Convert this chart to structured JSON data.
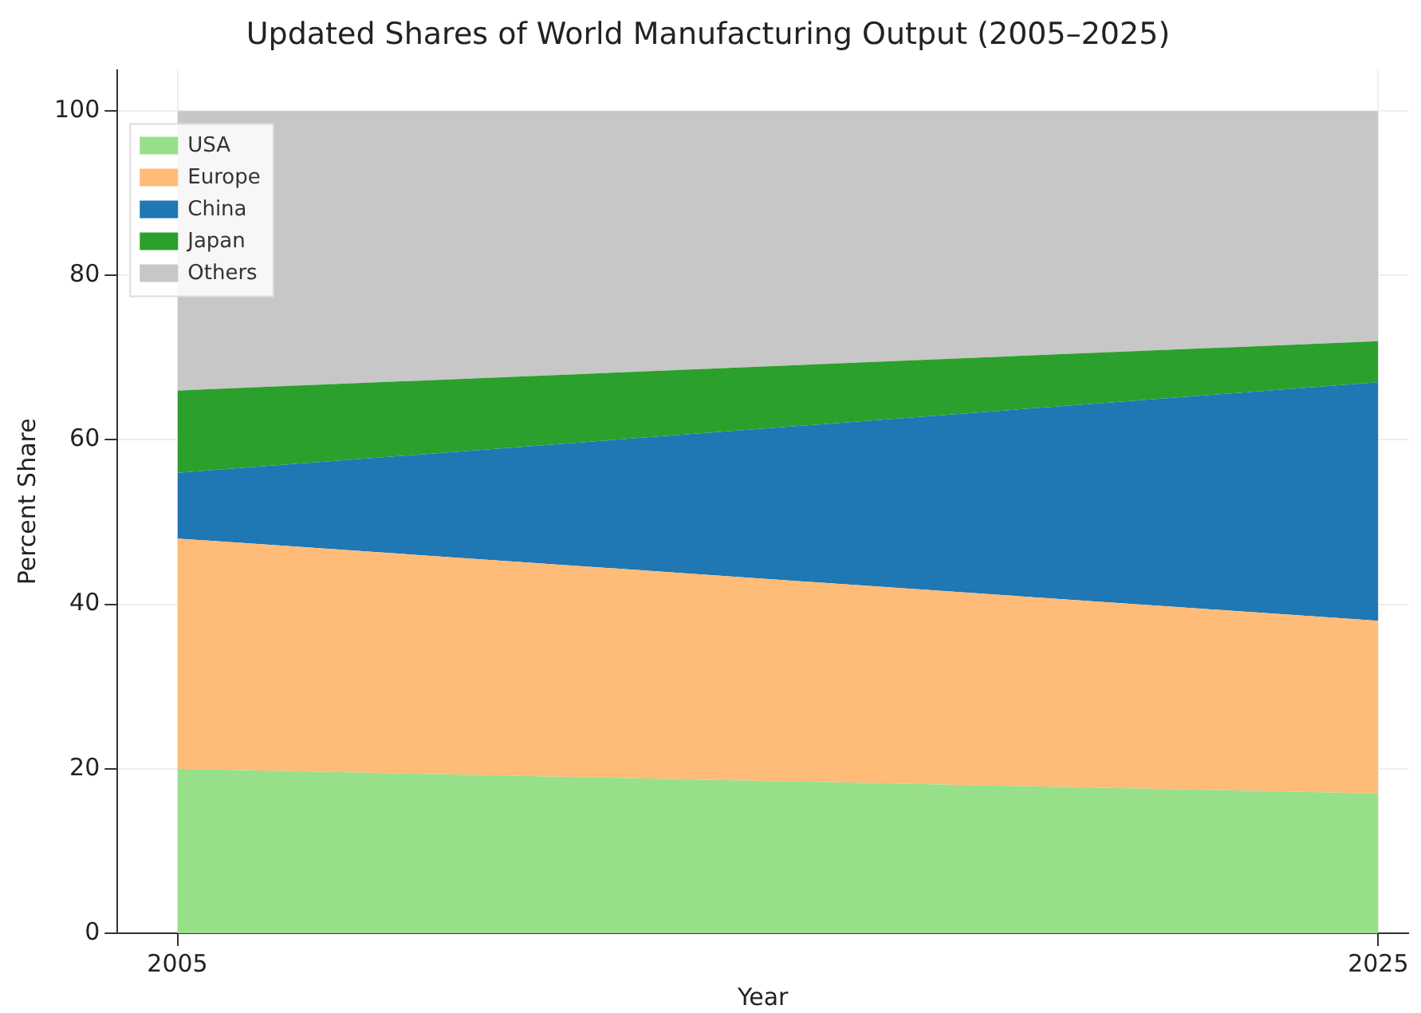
{
  "chart_data": {
    "type": "area",
    "title": "Updated Shares of World Manufacturing Output (2005–2025)",
    "xlabel": "Year",
    "ylabel": "Percent Share",
    "x": [
      2005,
      2025
    ],
    "stacked": true,
    "series": [
      {
        "name": "USA",
        "color": "#98df8a",
        "values": [
          20,
          17
        ]
      },
      {
        "name": "Europe",
        "color": "#ffbb78",
        "values": [
          28,
          21
        ]
      },
      {
        "name": "China",
        "color": "#1f77b4",
        "values": [
          8,
          29
        ]
      },
      {
        "name": "Japan",
        "color": "#2ca02c",
        "values": [
          10,
          5
        ]
      },
      {
        "name": "Others",
        "color": "#c7c7c7",
        "values": [
          34,
          28
        ]
      }
    ],
    "xlim": [
      2004,
      2025.5
    ],
    "xticks": [
      2005,
      2025
    ],
    "ylim": [
      0,
      105
    ],
    "yticks": [
      0,
      20,
      40,
      60,
      80,
      100
    ],
    "grid": true,
    "legend": "top left"
  }
}
